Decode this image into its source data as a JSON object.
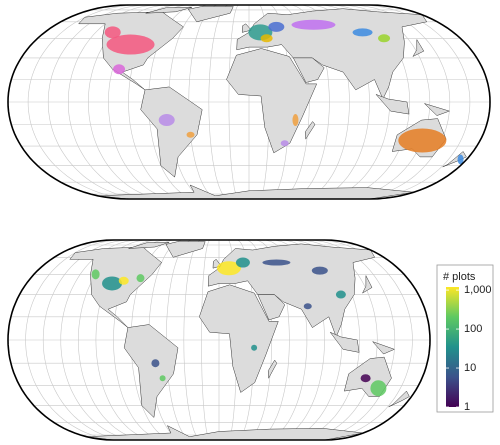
{
  "legend": {
    "title": "# plots",
    "scale": "log",
    "clim": [
      1,
      1200
    ],
    "colormap": [
      "#440154",
      "#3b528b",
      "#21918c",
      "#5ec962",
      "#fde725"
    ],
    "ticks": [
      1,
      10,
      100,
      {
        "value": 1000,
        "label": "1,000"
      }
    ]
  }
}
